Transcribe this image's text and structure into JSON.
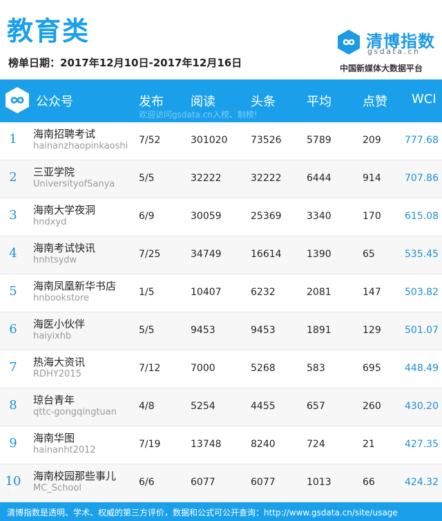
{
  "title": "教育类",
  "date_range": "榜单日期：2017年12月10日-2017年12月16日",
  "logo": {
    "name": "清博指数",
    "domain": "gsdata.cn",
    "subtitle": "中国新媒体大数据平台",
    "icon": "infinity-link-icon"
  },
  "header": {
    "icon": "infinity-link-icon",
    "columns": [
      "公众号",
      "发布",
      "阅读",
      "头条",
      "平均",
      "点赞",
      "WCI"
    ],
    "note": "欢迎访问gsdata.cn入榜、制榜!"
  },
  "rows": [
    {
      "rank": "1",
      "name": "海南招聘考试",
      "id": "hainanzhaopinkaoshi",
      "publish": "7/52",
      "read": "301020",
      "headline": "73526",
      "avg": "5789",
      "like": "209",
      "wci": "777.68"
    },
    {
      "rank": "2",
      "name": "三亚学院",
      "id": "UniversityofSanya",
      "publish": "5/5",
      "read": "32222",
      "headline": "32222",
      "avg": "6444",
      "like": "914",
      "wci": "707.86"
    },
    {
      "rank": "3",
      "name": "海南大学夜洞",
      "id": "hndxyd",
      "publish": "6/9",
      "read": "30059",
      "headline": "25369",
      "avg": "3340",
      "like": "170",
      "wci": "615.08"
    },
    {
      "rank": "4",
      "name": "海南考试快讯",
      "id": "hnhtsydw",
      "publish": "7/25",
      "read": "34749",
      "headline": "16614",
      "avg": "1390",
      "like": "65",
      "wci": "535.45"
    },
    {
      "rank": "5",
      "name": "海南凤凰新华书店",
      "id": "hnbookstore",
      "publish": "1/5",
      "read": "10407",
      "headline": "6232",
      "avg": "2081",
      "like": "147",
      "wci": "503.82"
    },
    {
      "rank": "6",
      "name": "海医小伙伴",
      "id": "haiyixhb",
      "publish": "5/5",
      "read": "9453",
      "headline": "9453",
      "avg": "1891",
      "like": "129",
      "wci": "501.07"
    },
    {
      "rank": "7",
      "name": "热海大资讯",
      "id": "RDHY2015",
      "publish": "7/12",
      "read": "7000",
      "headline": "5268",
      "avg": "583",
      "like": "695",
      "wci": "448.49"
    },
    {
      "rank": "8",
      "name": "琼台青年",
      "id": "qttc-gongqingtuan",
      "publish": "4/8",
      "read": "5254",
      "headline": "4455",
      "avg": "657",
      "like": "260",
      "wci": "430.20"
    },
    {
      "rank": "9",
      "name": "海南华图",
      "id": "hainanht2012",
      "publish": "7/19",
      "read": "13748",
      "headline": "8240",
      "avg": "724",
      "like": "21",
      "wci": "427.35"
    },
    {
      "rank": "10",
      "name": "海南校园那些事儿",
      "id": "MC_School",
      "publish": "6/6",
      "read": "6077",
      "headline": "6077",
      "avg": "1013",
      "like": "66",
      "wci": "424.32"
    }
  ],
  "footer": "清博指数是透明、学术、权威的第三方评价，数据和公式可公开查询：http://www.gsdata.cn/site/usage",
  "colors": {
    "accent": "#1aa0ea",
    "wci": "#1a8fd6",
    "row_alt": "#f7f7f7"
  }
}
